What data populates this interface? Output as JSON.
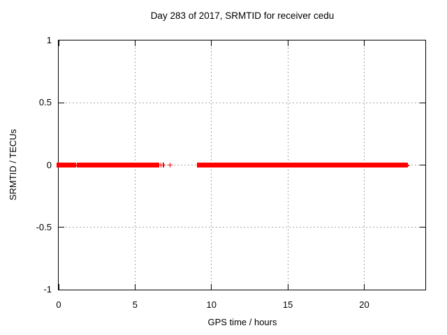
{
  "chart": {
    "title": "Day 283 of 2017, SRMTID for receiver cedu",
    "xlabel": "GPS time / hours",
    "ylabel": "SRMTID / TECUs",
    "axes": {
      "xlim": [
        0,
        24
      ],
      "ylim": [
        -1,
        1
      ],
      "x_ticks": [
        {
          "label": "0",
          "value": 0
        },
        {
          "label": "5",
          "value": 5
        },
        {
          "label": "10",
          "value": 10
        },
        {
          "label": "15",
          "value": 15
        },
        {
          "label": "20",
          "value": 20
        }
      ],
      "y_ticks": [
        {
          "label": "1",
          "value": 1
        },
        {
          "label": "0.5",
          "value": 0.5
        },
        {
          "label": "0",
          "value": 0
        },
        {
          "label": "-0.5",
          "value": -0.5
        },
        {
          "label": "-1",
          "value": -1
        }
      ],
      "x_gridlines": [
        5,
        10,
        15,
        20
      ],
      "y_gridlines": [
        0.5,
        0,
        -0.5
      ]
    },
    "colors": {
      "series": "#ff0000",
      "grid": "#a6a6a6",
      "axis": "#000000",
      "text": "#000000",
      "background": "#ffffff"
    }
  },
  "chart_data": {
    "type": "scatter",
    "marker": "plus",
    "title": "Day 283 of 2017, SRMTID for receiver cedu",
    "xlabel": "GPS time / hours",
    "ylabel": "SRMTID / TECUs",
    "xlim": [
      0,
      24
    ],
    "ylim": [
      -1,
      1
    ],
    "grid": true,
    "legend": "none",
    "series": [
      {
        "name": "SRMTID",
        "color": "#ff0000",
        "y_constant": 0,
        "description": "All data points lie at SRMTID = 0 TECUs; dense runs of plus markers appear as solid bars with gaps where no data exists",
        "dense_x_ranges_hours": [
          [
            0.0,
            1.0
          ],
          [
            1.36,
            6.4
          ],
          [
            9.2,
            22.7
          ]
        ],
        "sparse_x_ranges_hours": [
          [
            1.0,
            1.36
          ],
          [
            22.7,
            22.95
          ]
        ],
        "isolated_x_hours": [
          6.69,
          6.85,
          7.29
        ]
      }
    ]
  }
}
